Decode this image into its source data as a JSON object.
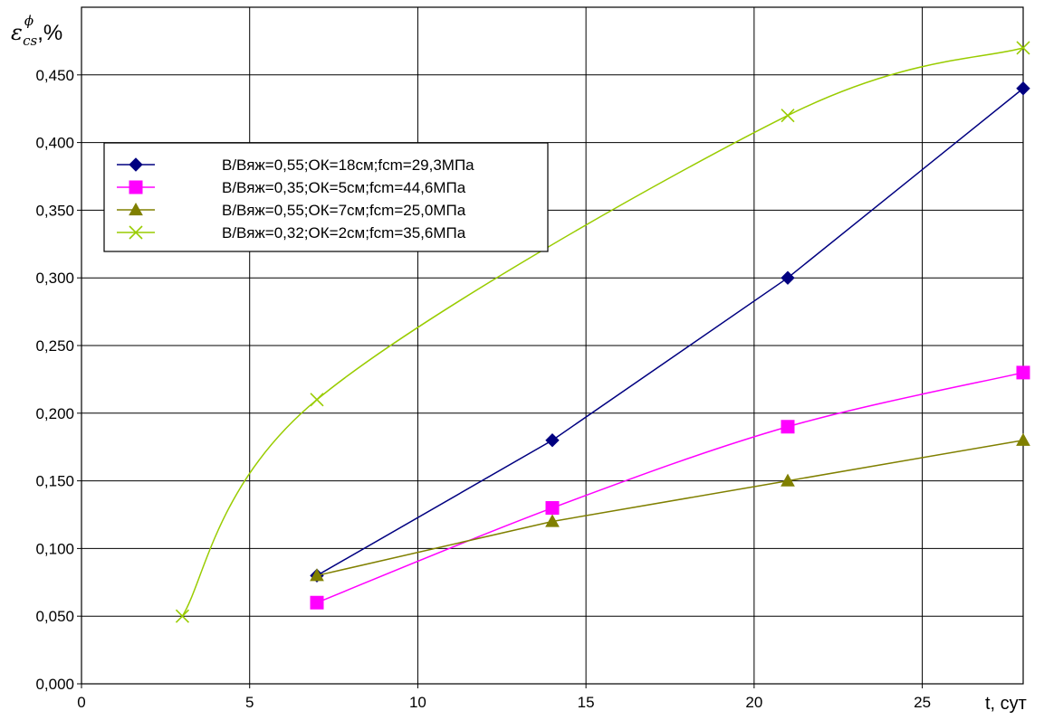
{
  "chart_data": {
    "type": "line",
    "title": "",
    "ylabel": {
      "symbol": "ε",
      "subscript": "cs",
      "superscript": "ϕ",
      "suffix": ",%"
    },
    "xlabel": "t, сут",
    "xlim": [
      0,
      28
    ],
    "ylim": [
      0,
      0.5
    ],
    "x_ticks": [
      {
        "value": 0,
        "label": "0"
      },
      {
        "value": 5,
        "label": "5"
      },
      {
        "value": 10,
        "label": "10"
      },
      {
        "value": 15,
        "label": "15"
      },
      {
        "value": 20,
        "label": "20"
      },
      {
        "value": 25,
        "label": "25"
      }
    ],
    "y_ticks": [
      {
        "value": 0.0,
        "label": "0,000"
      },
      {
        "value": 0.05,
        "label": "0,050"
      },
      {
        "value": 0.1,
        "label": "0,100"
      },
      {
        "value": 0.15,
        "label": "0,150"
      },
      {
        "value": 0.2,
        "label": "0,200"
      },
      {
        "value": 0.25,
        "label": "0,250"
      },
      {
        "value": 0.3,
        "label": "0,300"
      },
      {
        "value": 0.35,
        "label": "0,350"
      },
      {
        "value": 0.4,
        "label": "0,400"
      },
      {
        "value": 0.45,
        "label": "0,450"
      }
    ],
    "grid": true,
    "legend_position": "upper-left",
    "series": [
      {
        "name": "В/Вяж=0,55;ОК=18см;fcm=29,3МПа",
        "color": "#000080",
        "marker": "diamond",
        "smooth": false,
        "points": [
          [
            7,
            0.08
          ],
          [
            14,
            0.18
          ],
          [
            21,
            0.3
          ],
          [
            28,
            0.44
          ]
        ]
      },
      {
        "name": "В/Вяж=0,35;ОК=5см;fcm=44,6МПа",
        "color": "#ff00ff",
        "marker": "square",
        "smooth": true,
        "points": [
          [
            7,
            0.06
          ],
          [
            14,
            0.13
          ],
          [
            21,
            0.19
          ],
          [
            28,
            0.23
          ]
        ]
      },
      {
        "name": "В/Вяж=0,55;ОК=7см;fcm=25,0МПа",
        "color": "#808000",
        "marker": "triangle",
        "smooth": false,
        "points": [
          [
            7,
            0.08
          ],
          [
            14,
            0.12
          ],
          [
            21,
            0.15
          ],
          [
            28,
            0.18
          ]
        ]
      },
      {
        "name": "В/Вяж=0,32;ОК=2см;fcm=35,6МПа",
        "color": "#99cc00",
        "marker": "cross",
        "smooth": true,
        "points": [
          [
            3,
            0.05
          ],
          [
            7,
            0.21
          ],
          [
            21,
            0.42
          ],
          [
            28,
            0.47
          ]
        ]
      }
    ]
  }
}
